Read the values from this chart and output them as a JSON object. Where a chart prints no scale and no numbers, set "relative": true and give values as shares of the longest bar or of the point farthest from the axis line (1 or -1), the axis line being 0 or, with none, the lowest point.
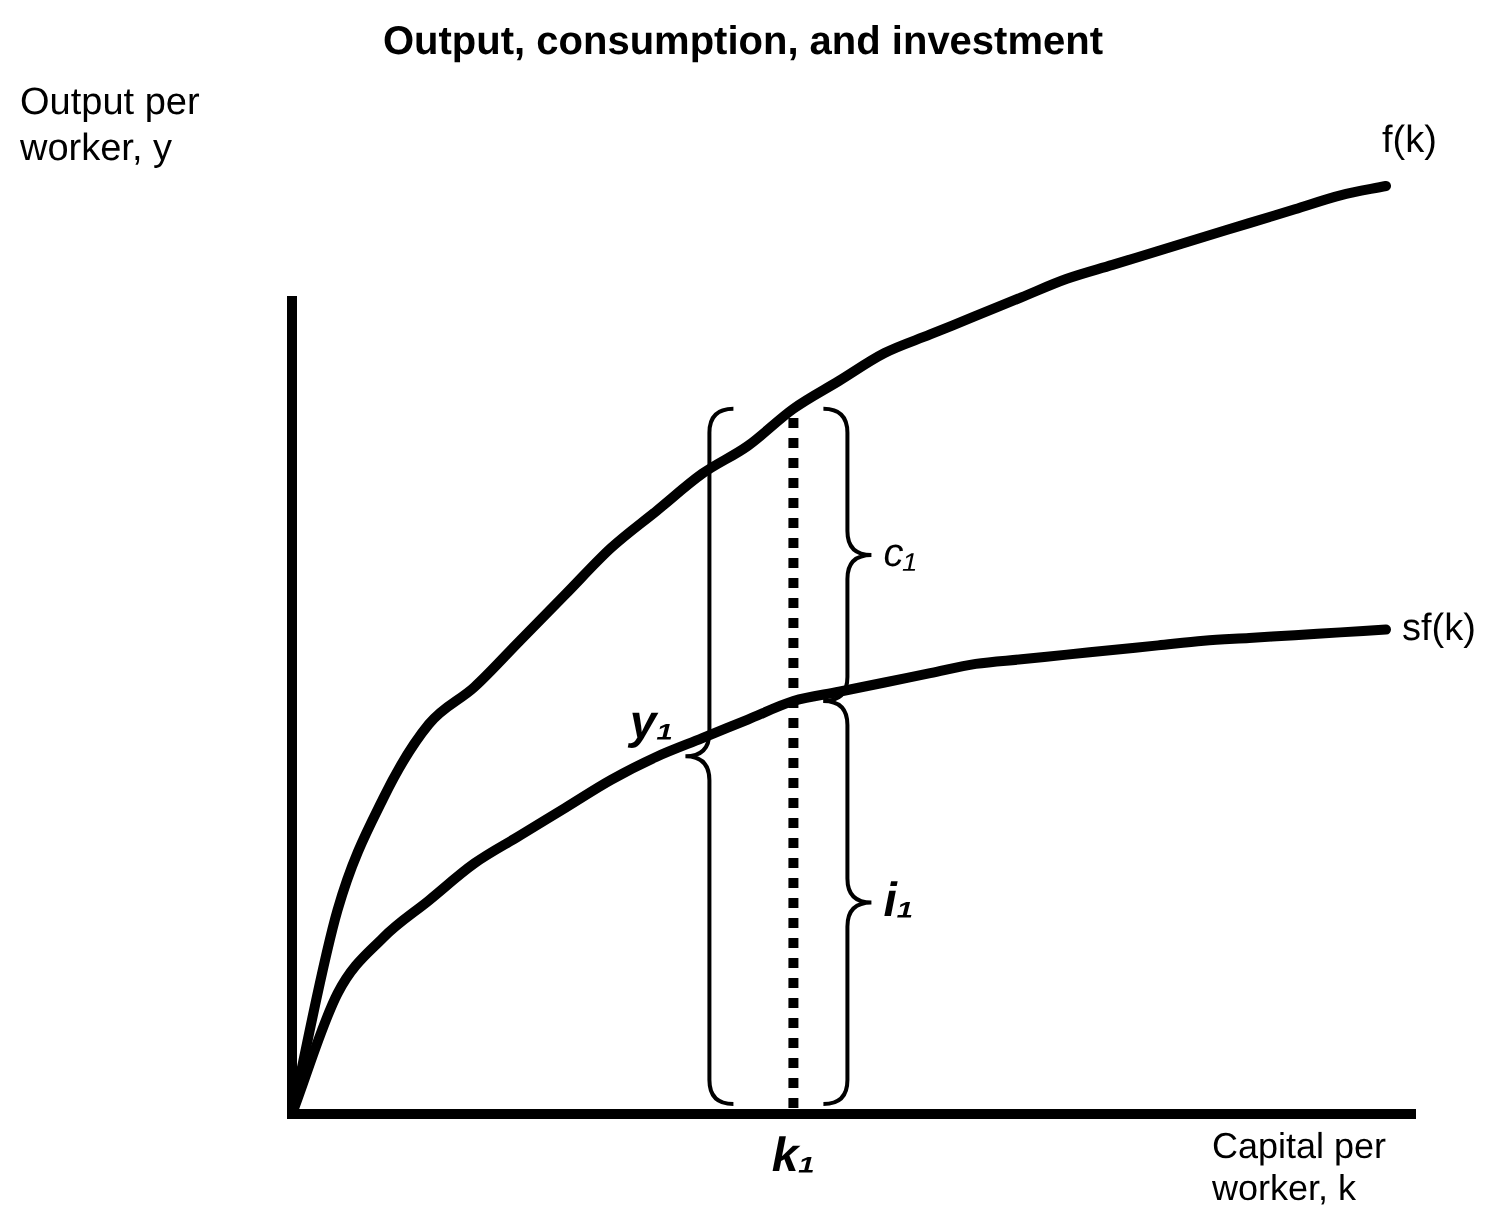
{
  "chart_data": {
    "type": "line",
    "title": "Output, consumption, and investment",
    "xlabel": "Capital per worker, k",
    "ylabel": "Output per worker, y",
    "relative": true,
    "categories": [
      null,
      null,
      null,
      null,
      null,
      null,
      null,
      null,
      null,
      null,
      null,
      null,
      null,
      null,
      null,
      null,
      null,
      null,
      null,
      null,
      null,
      null,
      null,
      null,
      null
    ],
    "series": [
      {
        "name": "f(k)",
        "color": "#000000",
        "values": [
          0,
          0.22,
          0.34,
          0.42,
          0.46,
          0.51,
          0.56,
          0.61,
          0.65,
          0.69,
          0.72,
          0.76,
          0.79,
          0.82,
          0.84,
          0.86,
          0.88,
          0.9,
          0.915,
          0.93,
          0.945,
          0.96,
          0.975,
          0.99,
          1
        ]
      },
      {
        "name": "sf(k)",
        "color": "#000000",
        "values": [
          0,
          0.13,
          0.19,
          0.23,
          0.27,
          0.3,
          0.33,
          0.36,
          0.385,
          0.405,
          0.425,
          0.445,
          0.455,
          0.465,
          0.475,
          0.485,
          0.49,
          0.495,
          0.5,
          0.505,
          0.51,
          0.513,
          0.516,
          0.519,
          0.522
        ]
      }
    ],
    "annotations": [
      "y₁",
      "c₁",
      "i₁",
      "k₁"
    ],
    "marker": "none",
    "line_style": "solid",
    "legend": false
  }
}
